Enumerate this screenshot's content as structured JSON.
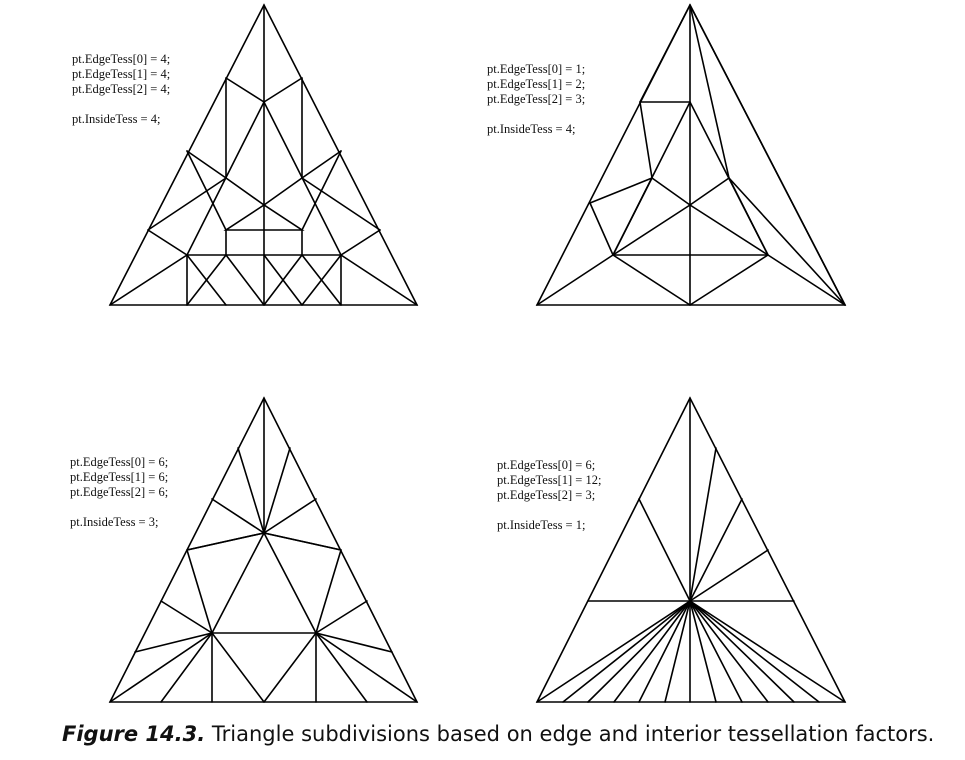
{
  "panels": [
    {
      "edge_labels": [
        "pt.EdgeTess[0] = 4;",
        "pt.EdgeTess[1] = 4;",
        "pt.EdgeTess[2] = 4;"
      ],
      "inside_label": "pt.InsideTess = 4;"
    },
    {
      "edge_labels": [
        "pt.EdgeTess[0] = 1;",
        "pt.EdgeTess[1] = 2;",
        "pt.EdgeTess[2] = 3;"
      ],
      "inside_label": "pt.InsideTess = 4;"
    },
    {
      "edge_labels": [
        "pt.EdgeTess[0] = 6;",
        "pt.EdgeTess[1] = 6;",
        "pt.EdgeTess[2] = 6;"
      ],
      "inside_label": "pt.InsideTess = 3;"
    },
    {
      "edge_labels": [
        "pt.EdgeTess[0] = 6;",
        "pt.EdgeTess[1] = 12;",
        "pt.EdgeTess[2] = 3;"
      ],
      "inside_label": "pt.InsideTess = 1;"
    }
  ],
  "caption": {
    "number": "Figure 14.3.",
    "text": "Triangle subdivisions based on edge and interior tessellation factors."
  }
}
